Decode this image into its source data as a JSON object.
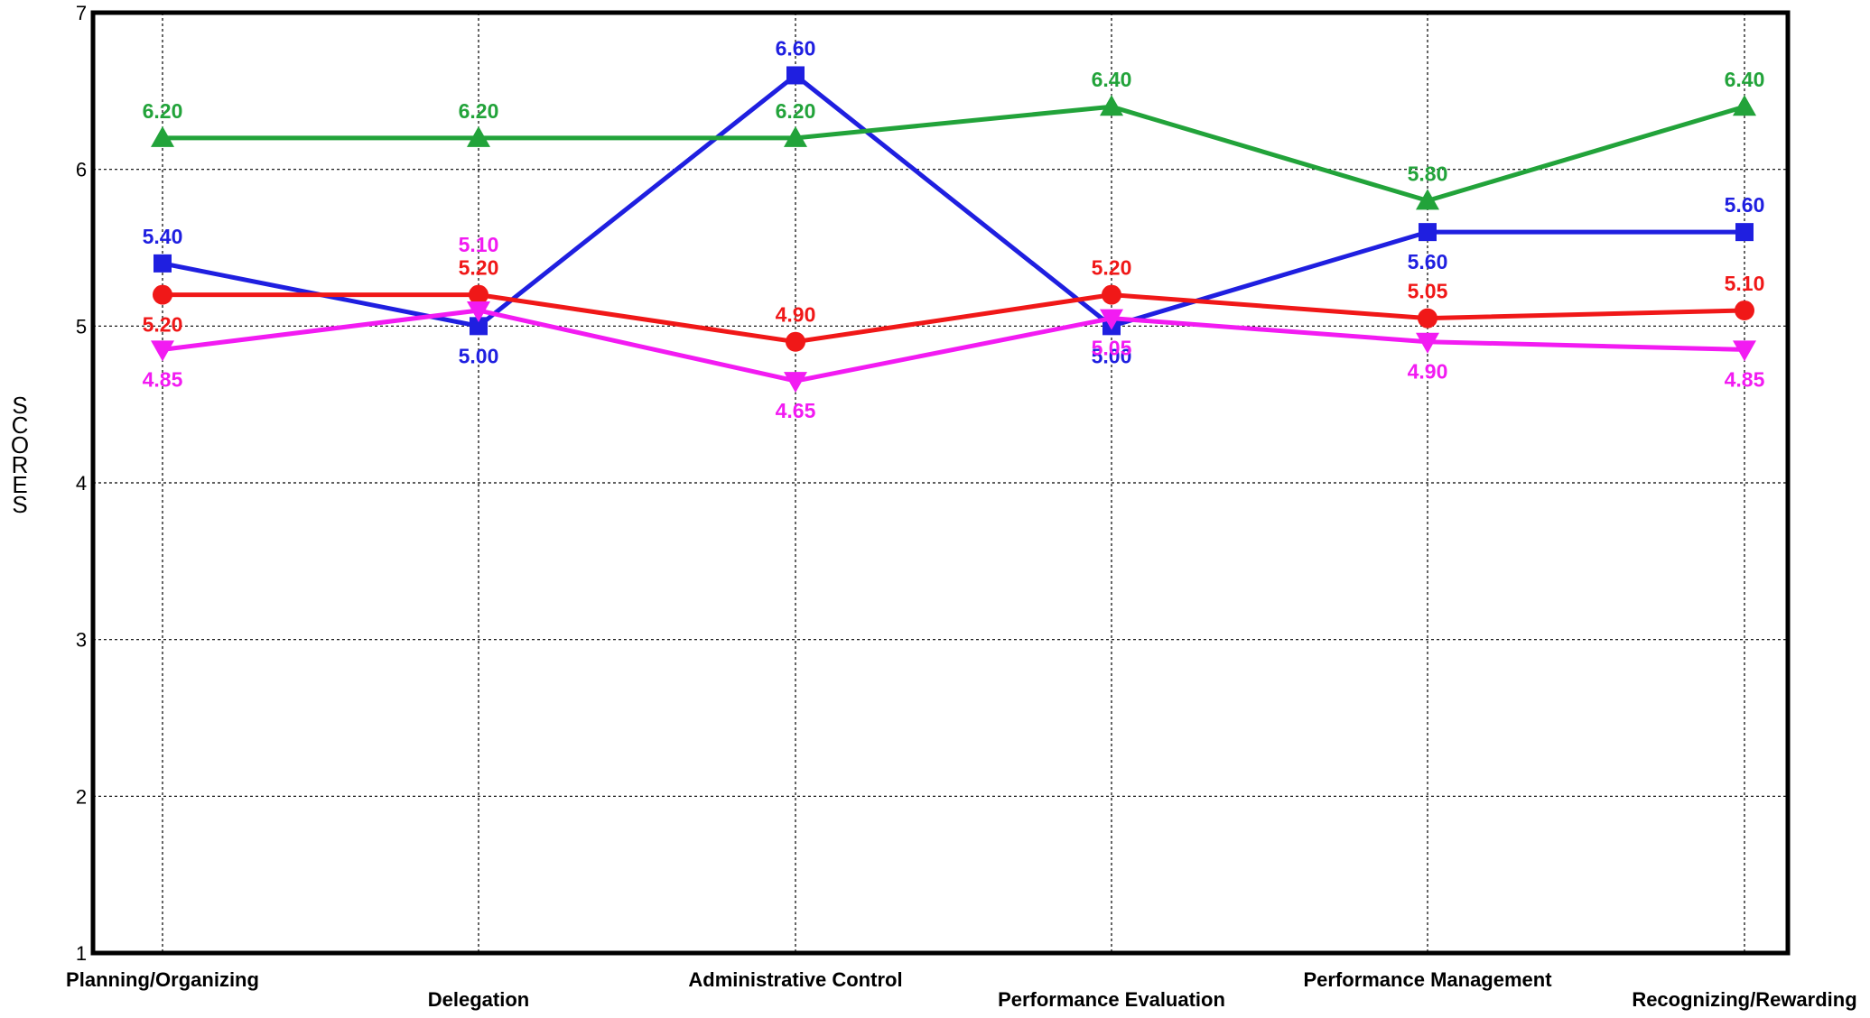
{
  "chart_data": {
    "type": "line",
    "ylabel": "SCORES",
    "ylim": [
      1,
      7
    ],
    "yticks": [
      "1",
      "2",
      "3",
      "4",
      "5",
      "6",
      "7"
    ],
    "grid": true,
    "categories": [
      "Planning/Organizing",
      "Delegation",
      "Administrative Control",
      "Performance Evaluation",
      "Performance Management",
      "Recognizing/Rewarding"
    ],
    "series": [
      {
        "color": "#1F1FE0",
        "marker": "square",
        "values": [
          5.4,
          5.0,
          6.6,
          5.0,
          5.6,
          5.6
        ],
        "labels": [
          "5.40",
          "5.00",
          "6.60",
          "5.00",
          "5.60",
          "5.60"
        ]
      },
      {
        "color": "#22A33A",
        "marker": "triangle-up",
        "values": [
          6.2,
          6.2,
          6.2,
          6.4,
          5.8,
          6.4
        ],
        "labels": [
          "6.20",
          "6.20",
          "6.20",
          "6.40",
          "5.80",
          "6.40"
        ]
      },
      {
        "color": "#F01818",
        "marker": "circle",
        "values": [
          5.2,
          5.2,
          4.9,
          5.2,
          5.05,
          5.1
        ],
        "labels": [
          "5.20",
          "5.20",
          "4.90",
          "5.20",
          "5.05",
          "5.10"
        ]
      },
      {
        "color": "#F21BF2",
        "marker": "triangle-down",
        "values": [
          4.85,
          5.1,
          4.65,
          5.05,
          4.9,
          4.85
        ],
        "labels": [
          "4.85",
          "5.10",
          "4.65",
          "5.05",
          "4.90",
          "4.85"
        ]
      }
    ]
  }
}
